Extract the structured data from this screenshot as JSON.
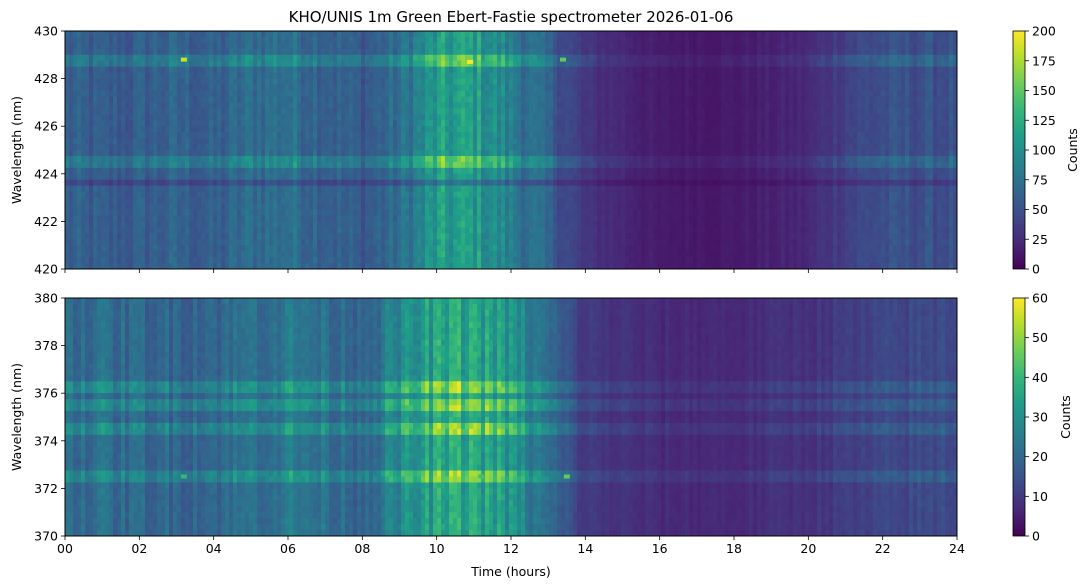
{
  "chart_data": {
    "title": "KHO/UNIS 1m Green Ebert-Fastie spectrometer 2026-01-06",
    "xlabel": "Time (hours)",
    "xlim": [
      0,
      24
    ],
    "x_ticks": [
      "00",
      "02",
      "04",
      "06",
      "08",
      "10",
      "12",
      "14",
      "16",
      "18",
      "20",
      "22",
      "24"
    ],
    "colormap": "viridis",
    "colormap_stops": [
      "#440154",
      "#482878",
      "#3e4989",
      "#31688e",
      "#26828e",
      "#1f9e89",
      "#35b779",
      "#6ece58",
      "#b5de2b",
      "#fde725"
    ],
    "panels": [
      {
        "type": "heatmap",
        "ylabel": "Wavelength (nm)",
        "ylim": [
          420,
          430
        ],
        "y_ticks": [
          "420",
          "422",
          "424",
          "426",
          "428",
          "430"
        ],
        "colorbar": {
          "label": "Counts",
          "min": 0,
          "max": 200,
          "ticks": [
            "0",
            "25",
            "50",
            "75",
            "100",
            "125",
            "150",
            "175",
            "200"
          ]
        },
        "background_level": 50,
        "emission_lines_nm": [
          428.7,
          424.5
        ],
        "absorption_band_nm": 423.6,
        "intensity_profile": [
          {
            "t": 0,
            "level": 60
          },
          {
            "t": 1,
            "level": 55
          },
          {
            "t": 2,
            "level": 58
          },
          {
            "t": 3,
            "level": 62
          },
          {
            "t": 4,
            "level": 58
          },
          {
            "t": 5,
            "level": 70
          },
          {
            "t": 6,
            "level": 74
          },
          {
            "t": 7,
            "level": 65
          },
          {
            "t": 8,
            "level": 55
          },
          {
            "t": 9,
            "level": 70
          },
          {
            "t": 10,
            "level": 105
          },
          {
            "t": 11,
            "level": 110
          },
          {
            "t": 12,
            "level": 85
          },
          {
            "t": 13,
            "level": 60
          },
          {
            "t": 14,
            "level": 30
          },
          {
            "t": 16,
            "level": 14
          },
          {
            "t": 18,
            "level": 14
          },
          {
            "t": 20,
            "level": 22
          },
          {
            "t": 21,
            "level": 40
          },
          {
            "t": 22,
            "level": 48
          },
          {
            "t": 24,
            "level": 50
          }
        ],
        "peak_events": [
          {
            "t": 3.2,
            "wavelength": 428.8,
            "counts": 185
          },
          {
            "t": 10.9,
            "wavelength": 428.7,
            "counts": 200
          },
          {
            "t": 13.4,
            "wavelength": 428.8,
            "counts": 150
          }
        ]
      },
      {
        "type": "heatmap",
        "ylabel": "Wavelength (nm)",
        "ylim": [
          370,
          380
        ],
        "y_ticks": [
          "370",
          "372",
          "374",
          "376",
          "378",
          "380"
        ],
        "colorbar": {
          "label": "Counts",
          "min": 0,
          "max": 60,
          "ticks": [
            "0",
            "10",
            "20",
            "30",
            "40",
            "50",
            "60"
          ]
        },
        "background_level": 15,
        "emission_lines_nm": [
          372.5,
          376.2,
          375.5,
          374.4
        ],
        "intensity_profile": [
          {
            "t": 0,
            "level": 22
          },
          {
            "t": 2,
            "level": 20
          },
          {
            "t": 4,
            "level": 20
          },
          {
            "t": 6,
            "level": 24
          },
          {
            "t": 8,
            "level": 20
          },
          {
            "t": 10,
            "level": 34
          },
          {
            "t": 11,
            "level": 36
          },
          {
            "t": 12,
            "level": 30
          },
          {
            "t": 13,
            "level": 20
          },
          {
            "t": 14,
            "level": 10
          },
          {
            "t": 16,
            "level": 7
          },
          {
            "t": 18,
            "level": 7
          },
          {
            "t": 20,
            "level": 9
          },
          {
            "t": 22,
            "level": 12
          },
          {
            "t": 24,
            "level": 14
          }
        ],
        "peak_events": [
          {
            "t": 3.2,
            "wavelength": 372.5,
            "counts": 40
          },
          {
            "t": 11.2,
            "wavelength": 372.5,
            "counts": 42
          },
          {
            "t": 13.5,
            "wavelength": 372.5,
            "counts": 45
          }
        ]
      }
    ]
  }
}
